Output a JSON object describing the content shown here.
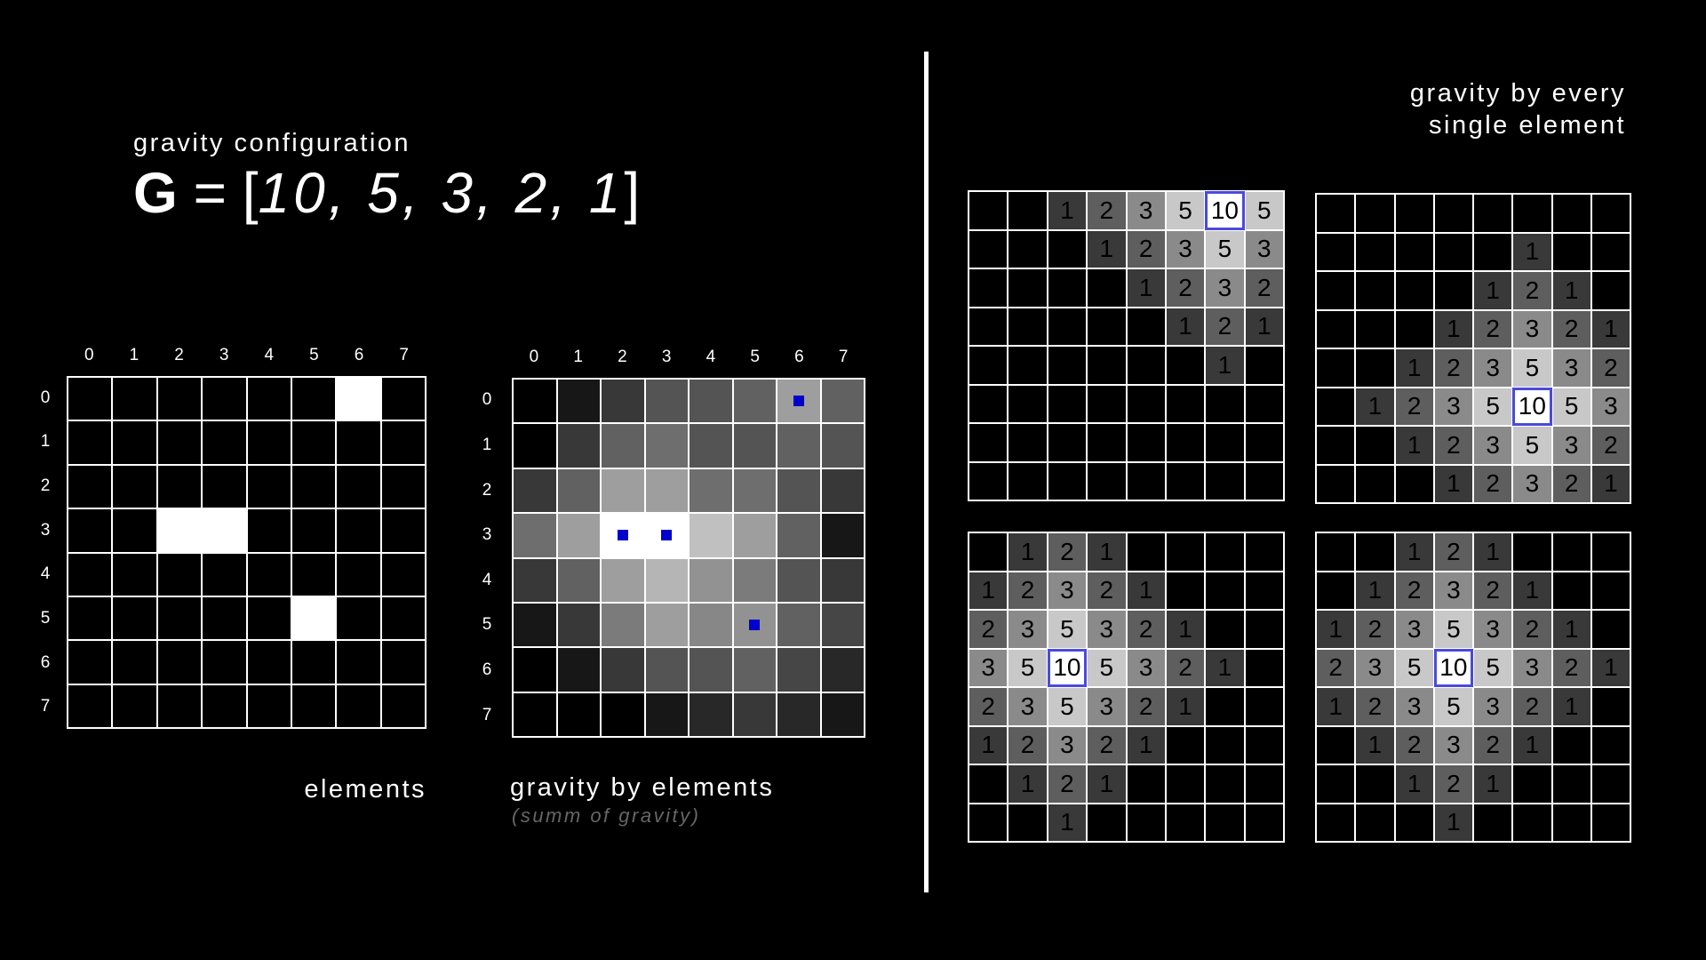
{
  "header": {
    "config_title": "gravity configuration",
    "formula_symbol": "G",
    "formula_equals": "=",
    "formula_open": "[",
    "formula_values": "10,  5,  3,  2,  1",
    "formula_close": "]",
    "single_title_line1": "gravity by every",
    "single_title_line2": "single element"
  },
  "colors": {
    "background": "#000000",
    "grid_line": "#ffffff",
    "element_fill": "#ffffff",
    "marker": "#0000cc",
    "origin_border": "#4a4adc"
  },
  "axis_labels": [
    "0",
    "1",
    "2",
    "3",
    "4",
    "5",
    "6",
    "7"
  ],
  "elements": {
    "caption": "elements",
    "positions": [
      [
        0,
        6
      ],
      [
        3,
        2
      ],
      [
        3,
        3
      ],
      [
        5,
        5
      ]
    ]
  },
  "gravity_by_elements": {
    "caption": "gravity by elements",
    "subcaption": "(summ of gravity)",
    "markers": [
      [
        0,
        6
      ],
      [
        3,
        2
      ],
      [
        3,
        3
      ],
      [
        5,
        5
      ]
    ],
    "intensity": [
      [
        0,
        1,
        3,
        5,
        5,
        6,
        11,
        6
      ],
      [
        0,
        3,
        6,
        7,
        5,
        5,
        6,
        5
      ],
      [
        3,
        6,
        11,
        11,
        7,
        7,
        5,
        3
      ],
      [
        7,
        11,
        20,
        20,
        14,
        11,
        6,
        1
      ],
      [
        3,
        6,
        11,
        13,
        10,
        8,
        5,
        3
      ],
      [
        1,
        3,
        8,
        11,
        9,
        10,
        6,
        4
      ],
      [
        0,
        1,
        3,
        5,
        5,
        6,
        4,
        2
      ],
      [
        0,
        0,
        0,
        1,
        2,
        3,
        2,
        1
      ]
    ]
  },
  "single_grids": [
    {
      "origin": [
        0,
        6
      ],
      "values": [
        [
          "",
          "",
          "1",
          "2",
          "3",
          "5",
          "10",
          "5"
        ],
        [
          "",
          "",
          "",
          "1",
          "2",
          "3",
          "5",
          "3"
        ],
        [
          "",
          "",
          "",
          "",
          "1",
          "2",
          "3",
          "2"
        ],
        [
          "",
          "",
          "",
          "",
          "",
          "1",
          "2",
          "1"
        ],
        [
          "",
          "",
          "",
          "",
          "",
          "",
          "1",
          ""
        ],
        [
          "",
          "",
          "",
          "",
          "",
          "",
          "",
          ""
        ],
        [
          "",
          "",
          "",
          "",
          "",
          "",
          "",
          ""
        ],
        [
          "",
          "",
          "",
          "",
          "",
          "",
          "",
          ""
        ]
      ]
    },
    {
      "origin": [
        5,
        5
      ],
      "values": [
        [
          "",
          "",
          "",
          "",
          "",
          "",
          "",
          ""
        ],
        [
          "",
          "",
          "",
          "",
          "",
          "1",
          "",
          ""
        ],
        [
          "",
          "",
          "",
          "",
          "1",
          "2",
          "1",
          ""
        ],
        [
          "",
          "",
          "",
          "1",
          "2",
          "3",
          "2",
          "1"
        ],
        [
          "",
          "",
          "1",
          "2",
          "3",
          "5",
          "3",
          "2"
        ],
        [
          "",
          "1",
          "2",
          "3",
          "5",
          "10",
          "5",
          "3"
        ],
        [
          "",
          "",
          "1",
          "2",
          "3",
          "5",
          "3",
          "2"
        ],
        [
          "",
          "",
          "",
          "1",
          "2",
          "3",
          "2",
          "1"
        ]
      ]
    },
    {
      "origin": [
        3,
        2
      ],
      "values": [
        [
          "",
          "1",
          "2",
          "1",
          "",
          "",
          "",
          ""
        ],
        [
          "1",
          "2",
          "3",
          "2",
          "1",
          "",
          "",
          ""
        ],
        [
          "2",
          "3",
          "5",
          "3",
          "2",
          "1",
          "",
          ""
        ],
        [
          "3",
          "5",
          "10",
          "5",
          "3",
          "2",
          "1",
          ""
        ],
        [
          "2",
          "3",
          "5",
          "3",
          "2",
          "1",
          "",
          ""
        ],
        [
          "1",
          "2",
          "3",
          "2",
          "1",
          "",
          "",
          ""
        ],
        [
          "",
          "1",
          "2",
          "1",
          "",
          "",
          "",
          ""
        ],
        [
          "",
          "",
          "1",
          "",
          "",
          "",
          "",
          ""
        ]
      ]
    },
    {
      "origin": [
        3,
        3
      ],
      "values": [
        [
          "",
          "",
          "1",
          "2",
          "1",
          "",
          "",
          ""
        ],
        [
          "",
          "1",
          "2",
          "3",
          "2",
          "1",
          "",
          ""
        ],
        [
          "1",
          "2",
          "3",
          "5",
          "3",
          "2",
          "1",
          ""
        ],
        [
          "2",
          "3",
          "5",
          "10",
          "5",
          "3",
          "2",
          "1"
        ],
        [
          "1",
          "2",
          "3",
          "5",
          "3",
          "2",
          "1",
          ""
        ],
        [
          "",
          "1",
          "2",
          "3",
          "2",
          "1",
          "",
          ""
        ],
        [
          "",
          "",
          "1",
          "2",
          "1",
          "",
          "",
          ""
        ],
        [
          "",
          "",
          "",
          "1",
          "",
          "",
          "",
          ""
        ]
      ]
    }
  ]
}
